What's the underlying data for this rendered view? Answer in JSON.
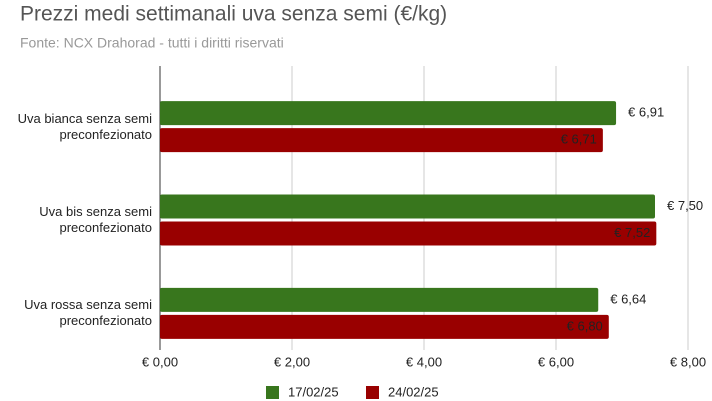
{
  "chart_data": {
    "type": "bar",
    "orientation": "horizontal",
    "title": "Prezzi medi settimanali uva senza semi (€/kg)",
    "subtitle": "Fonte: NCX Drahorad - tutti i diritti riservati",
    "categories": [
      "Uva bianca senza semi preconfezionato",
      "Uva bis senza semi preconfezionato",
      "Uva rossa senza semi preconfezionato"
    ],
    "series": [
      {
        "name": "17/02/25",
        "color": "#38761d",
        "values": [
          6.91,
          7.5,
          6.64
        ],
        "value_labels": [
          "€ 6,91",
          "€ 7,50",
          "€ 6,64"
        ]
      },
      {
        "name": "24/02/25",
        "color": "#990000",
        "values": [
          6.71,
          7.52,
          6.8
        ],
        "value_labels": [
          "€ 6,71",
          "€ 7,52",
          "€ 6,80"
        ]
      }
    ],
    "xlim": [
      0,
      8
    ],
    "xticks": [
      {
        "value": 0,
        "label": "€ 0,00"
      },
      {
        "value": 2,
        "label": "€ 2,00"
      },
      {
        "value": 4,
        "label": "€ 4,00"
      },
      {
        "value": 6,
        "label": "€ 6,00"
      },
      {
        "value": 8,
        "label": "€ 8,00"
      }
    ],
    "grid": true,
    "legend": "bottom"
  }
}
